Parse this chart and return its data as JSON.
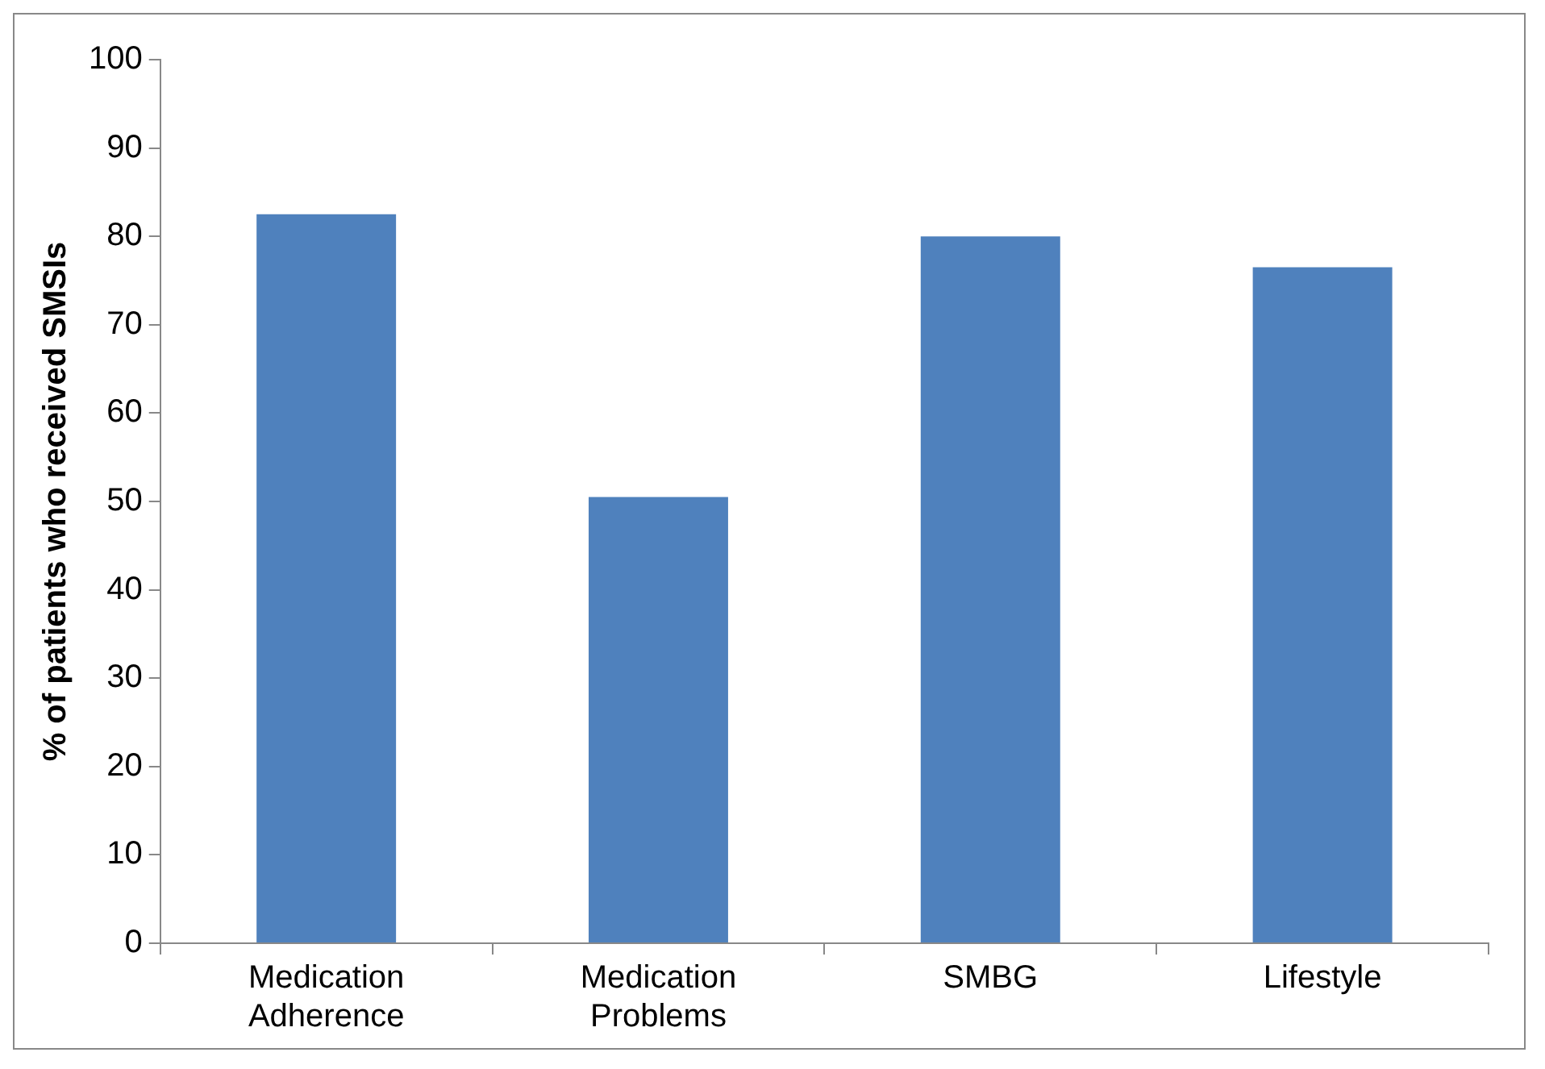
{
  "chart_data": {
    "type": "bar",
    "categories": [
      "Medication Adherence",
      "Medication Problems",
      "SMBG",
      "Lifestyle"
    ],
    "values": [
      82.5,
      50.5,
      80,
      76.5
    ],
    "color": "#4f81bd",
    "ylabel": "% of patients who received SMSIs",
    "ylim": [
      0,
      100
    ],
    "yticks": [
      0,
      10,
      20,
      30,
      40,
      50,
      60,
      70,
      80,
      90,
      100
    ],
    "grid": false,
    "legend": false
  }
}
